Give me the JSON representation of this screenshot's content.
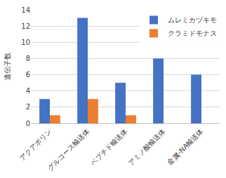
{
  "chart_data": {
    "type": "bar",
    "y_label": "遺伝子数",
    "categories": [
      "アクアポリン",
      "グルコース輸送体",
      "ペプチド輸送体",
      "アミノ酸輸送体",
      "金属-NA輸送体"
    ],
    "series": [
      {
        "name": "ムレミカヅキモ",
        "color": "#4472c4",
        "values": [
          3,
          13,
          5,
          8,
          6
        ]
      },
      {
        "name": "クラミドモナス",
        "color": "#ed7d31",
        "values": [
          1,
          3,
          1,
          0,
          0
        ]
      }
    ],
    "ylim": [
      0,
      14
    ],
    "yticks": [
      0,
      2,
      4,
      6,
      8,
      10,
      12,
      14
    ],
    "grid": true,
    "legend": "top right"
  }
}
